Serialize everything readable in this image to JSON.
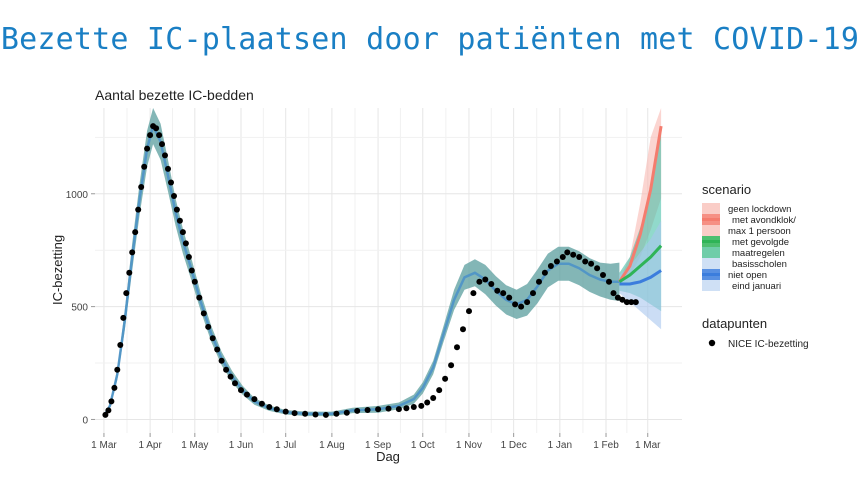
{
  "slide": {
    "title": "Bezette IC-plaatsen door patiënten met COVID-19"
  },
  "colors": {
    "title": "#1a7fc4",
    "band_main": "#5a9e9e",
    "line_main": "#4a90c9",
    "scen_lockdown": "#f47c6e",
    "scen_lockdown_band": "#f9b9b2",
    "scen_avondklok": "#f8a99f",
    "scen_maatregelen": "#2fb457",
    "scen_maatregelen_band": "#48bfa8",
    "scen_scholen": "#3b7ddd",
    "scen_scholen_band": "#a9c6ee",
    "points": "#000000",
    "grid": "#e6e6e6"
  },
  "chart_data": {
    "type": "line",
    "title": "Aantal bezette IC-bedden",
    "xlabel": "Dag",
    "ylabel": "IC-bezetting",
    "x_ticks": [
      "1 Mar",
      "1 Apr",
      "1 May",
      "1 Jun",
      "1 Jul",
      "1 Aug",
      "1 Sep",
      "1 Oct",
      "1 Nov",
      "1 Dec",
      "1 Jan",
      "1 Feb",
      "1 Mar"
    ],
    "y_ticks": [
      0,
      500,
      1000
    ],
    "ylim": [
      -60,
      1380
    ],
    "xlim": [
      "2020-02-24",
      "2021-03-24"
    ],
    "grid": true,
    "legend": {
      "position": "right",
      "scenario_title": "scenario",
      "scenario_entries": [
        {
          "label": "geen lockdown",
          "color": "#f9c4bd",
          "line": false
        },
        {
          "label": "met avondklok/",
          "color": "#f47c6e",
          "line": true
        },
        {
          "label": "max 1 persoon",
          "color": "#f9c4bd",
          "line": false
        },
        {
          "label": "met gevolgde",
          "color": "#2fb457",
          "line": true
        },
        {
          "label": "maatregelen",
          "color": "#56c49a",
          "line": false
        },
        {
          "label": "basisscholen",
          "color": "#c7daf3",
          "line": false
        },
        {
          "label": "niet open",
          "color": "#3b7ddd",
          "line": true
        },
        {
          "label": "eind januari",
          "color": "#c7daf3",
          "line": false
        }
      ],
      "points_title": "datapunten",
      "points_label": "NICE IC-bezetting"
    },
    "model_fit": {
      "x": [
        "2020-03-01",
        "2020-03-05",
        "2020-03-10",
        "2020-03-15",
        "2020-03-20",
        "2020-03-25",
        "2020-03-30",
        "2020-04-03",
        "2020-04-08",
        "2020-04-13",
        "2020-04-18",
        "2020-04-23",
        "2020-04-28",
        "2020-05-05",
        "2020-05-12",
        "2020-05-19",
        "2020-05-26",
        "2020-06-02",
        "2020-06-10",
        "2020-06-20",
        "2020-07-01",
        "2020-07-15",
        "2020-08-01",
        "2020-08-15",
        "2020-09-01",
        "2020-09-15",
        "2020-09-25",
        "2020-10-01",
        "2020-10-08",
        "2020-10-15",
        "2020-10-22",
        "2020-10-29",
        "2020-11-05",
        "2020-11-12",
        "2020-11-19",
        "2020-11-26",
        "2020-12-03",
        "2020-12-10",
        "2020-12-17",
        "2020-12-24",
        "2020-12-31",
        "2021-01-07",
        "2021-01-14",
        "2021-01-21",
        "2021-01-28",
        "2021-02-04",
        "2021-02-10"
      ],
      "y": [
        15,
        60,
        200,
        440,
        720,
        980,
        1200,
        1300,
        1230,
        1080,
        920,
        790,
        680,
        520,
        380,
        270,
        190,
        130,
        80,
        50,
        32,
        25,
        25,
        40,
        45,
        60,
        90,
        140,
        230,
        380,
        530,
        630,
        650,
        620,
        570,
        530,
        510,
        530,
        590,
        660,
        690,
        690,
        670,
        640,
        620,
        610,
        610
      ],
      "band_halfwidth": [
        5,
        10,
        25,
        45,
        60,
        70,
        80,
        80,
        80,
        70,
        60,
        55,
        50,
        40,
        35,
        30,
        25,
        20,
        15,
        12,
        10,
        10,
        10,
        12,
        15,
        15,
        20,
        25,
        30,
        35,
        45,
        55,
        60,
        65,
        65,
        65,
        65,
        70,
        75,
        75,
        75,
        75,
        75,
        75,
        75,
        80,
        85
      ]
    },
    "scenarios": [
      {
        "name": "geen lockdown / met avondklok / max 1 persoon",
        "x": [
          "2021-02-10",
          "2021-02-17",
          "2021-02-24",
          "2021-03-03",
          "2021-03-10"
        ],
        "y": [
          610,
          680,
          820,
          1020,
          1300
        ],
        "lo": [
          600,
          640,
          720,
          840,
          980
        ],
        "hi": [
          620,
          720,
          960,
          1250,
          1500
        ],
        "color": "#f47c6e",
        "band": "#f9b9b2"
      },
      {
        "name": "met gevolgde maatregelen",
        "x": [
          "2021-02-10",
          "2021-02-17",
          "2021-02-24",
          "2021-03-03",
          "2021-03-10"
        ],
        "y": [
          610,
          640,
          680,
          720,
          770
        ],
        "lo": [
          570,
          560,
          540,
          510,
          480
        ],
        "hi": [
          650,
          720,
          850,
          1000,
          1300
        ],
        "color": "#2fb457",
        "band": "#48bfa8"
      },
      {
        "name": "basisscholen niet open eind januari",
        "x": [
          "2021-02-10",
          "2021-02-17",
          "2021-02-24",
          "2021-03-03",
          "2021-03-10"
        ],
        "y": [
          600,
          600,
          610,
          630,
          660
        ],
        "lo": [
          560,
          520,
          480,
          440,
          400
        ],
        "hi": [
          640,
          680,
          740,
          800,
          880
        ],
        "color": "#3b7ddd",
        "band": "#a9c6ee"
      }
    ],
    "nice_points": {
      "x": [
        "2020-03-02",
        "2020-03-04",
        "2020-03-06",
        "2020-03-08",
        "2020-03-10",
        "2020-03-12",
        "2020-03-14",
        "2020-03-16",
        "2020-03-18",
        "2020-03-20",
        "2020-03-22",
        "2020-03-24",
        "2020-03-26",
        "2020-03-28",
        "2020-03-30",
        "2020-04-01",
        "2020-04-03",
        "2020-04-05",
        "2020-04-07",
        "2020-04-09",
        "2020-04-11",
        "2020-04-13",
        "2020-04-15",
        "2020-04-17",
        "2020-04-19",
        "2020-04-21",
        "2020-04-23",
        "2020-04-25",
        "2020-04-27",
        "2020-04-29",
        "2020-05-01",
        "2020-05-04",
        "2020-05-07",
        "2020-05-10",
        "2020-05-13",
        "2020-05-16",
        "2020-05-19",
        "2020-05-22",
        "2020-05-25",
        "2020-05-28",
        "2020-06-01",
        "2020-06-05",
        "2020-06-10",
        "2020-06-15",
        "2020-06-20",
        "2020-06-25",
        "2020-07-01",
        "2020-07-07",
        "2020-07-14",
        "2020-07-21",
        "2020-07-28",
        "2020-08-04",
        "2020-08-11",
        "2020-08-18",
        "2020-08-25",
        "2020-09-01",
        "2020-09-08",
        "2020-09-15",
        "2020-09-20",
        "2020-09-25",
        "2020-09-30",
        "2020-10-04",
        "2020-10-08",
        "2020-10-12",
        "2020-10-16",
        "2020-10-20",
        "2020-10-24",
        "2020-10-28",
        "2020-11-01",
        "2020-11-04",
        "2020-11-08",
        "2020-11-12",
        "2020-11-16",
        "2020-11-20",
        "2020-11-24",
        "2020-11-28",
        "2020-12-02",
        "2020-12-06",
        "2020-12-10",
        "2020-12-14",
        "2020-12-18",
        "2020-12-22",
        "2020-12-26",
        "2020-12-30",
        "2021-01-03",
        "2021-01-06",
        "2021-01-10",
        "2021-01-14",
        "2021-01-18",
        "2021-01-22",
        "2021-01-26",
        "2021-01-30",
        "2021-02-03",
        "2021-02-06",
        "2021-02-09",
        "2021-02-12",
        "2021-02-15",
        "2021-02-18",
        "2021-02-21"
      ],
      "y": [
        20,
        40,
        80,
        140,
        220,
        330,
        450,
        560,
        650,
        740,
        830,
        930,
        1030,
        1120,
        1200,
        1260,
        1300,
        1290,
        1260,
        1220,
        1170,
        1110,
        1050,
        990,
        930,
        880,
        830,
        780,
        720,
        660,
        610,
        540,
        470,
        410,
        360,
        310,
        260,
        220,
        190,
        160,
        130,
        110,
        90,
        70,
        55,
        45,
        35,
        28,
        25,
        22,
        20,
        25,
        30,
        38,
        42,
        45,
        48,
        46,
        50,
        55,
        60,
        75,
        95,
        130,
        180,
        240,
        320,
        400,
        480,
        560,
        610,
        620,
        600,
        570,
        560,
        540,
        510,
        500,
        520,
        560,
        610,
        650,
        680,
        700,
        720,
        740,
        730,
        720,
        700,
        690,
        670,
        640,
        610,
        560,
        540,
        530,
        520,
        520,
        520
      ]
    }
  }
}
